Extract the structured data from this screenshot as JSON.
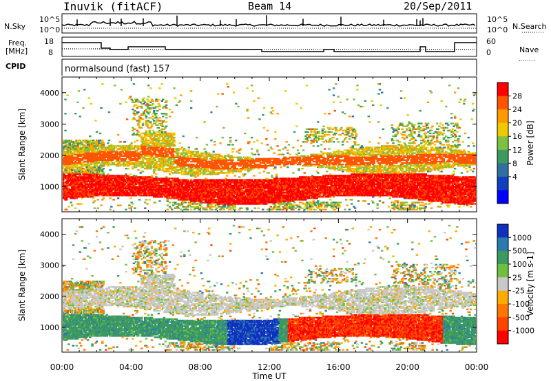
{
  "header": {
    "station": "Inuvik (fitACF)",
    "beam": "Beam 14",
    "date": "20/Sep/2011"
  },
  "left_labels": {
    "nsky": "N.Sky",
    "freq": "Freq.",
    "freq_unit": "[MHz]",
    "cpid": "CPID"
  },
  "right_labels": {
    "nsearch": "N.Search",
    "nave": "Nave"
  },
  "cpid_text": "normalsound (fast) 157",
  "noise_panel": {
    "left_ticks": [
      "10^5",
      "10^0"
    ],
    "right_ticks": [
      "10^5",
      "10^0"
    ]
  },
  "freq_panel": {
    "left_ticks": [
      "18",
      "8"
    ],
    "right_ticks": [
      "60",
      "0"
    ]
  },
  "chart_data": [
    {
      "type": "heatmap",
      "title": "",
      "xlabel": "Time UT",
      "ylabel": "Slant Range [km]",
      "x_ticks": [
        "00:00",
        "04:00",
        "08:00",
        "12:00",
        "16:00",
        "20:00",
        "00:00"
      ],
      "xlim_hours": [
        0,
        24
      ],
      "y_ticks": [
        1000,
        2000,
        3000,
        4000
      ],
      "ylim": [
        200,
        4500
      ],
      "colorbar": {
        "label": "Power [dB]",
        "ticks": [
          "28",
          "24",
          "20",
          "16",
          "12",
          "8",
          "4"
        ],
        "colors": [
          "#ff0000",
          "#ff5500",
          "#ff9900",
          "#f0c800",
          "#80c040",
          "#3c9a60",
          "#3070a0",
          "#1040c0",
          "#0000ff"
        ]
      }
    },
    {
      "type": "heatmap",
      "title": "",
      "xlabel": "Time UT",
      "ylabel": "Slant Range [km]",
      "x_ticks": [
        "00:00",
        "04:00",
        "08:00",
        "12:00",
        "16:00",
        "20:00",
        "00:00"
      ],
      "xlim_hours": [
        0,
        24
      ],
      "y_ticks": [
        1000,
        2000,
        3000,
        4000
      ],
      "ylim": [
        200,
        4500
      ],
      "colorbar": {
        "label": "Velocity [m s-1]",
        "ticks": [
          "1000",
          "500",
          "100",
          "25",
          "-25",
          "-100",
          "-500",
          "-1000"
        ],
        "colors": [
          "#1030c0",
          "#2a7ab0",
          "#3c9a60",
          "#70c040",
          "#c8c8c8",
          "#ffaa00",
          "#ff7700",
          "#ff4400",
          "#ff0000"
        ]
      }
    }
  ]
}
